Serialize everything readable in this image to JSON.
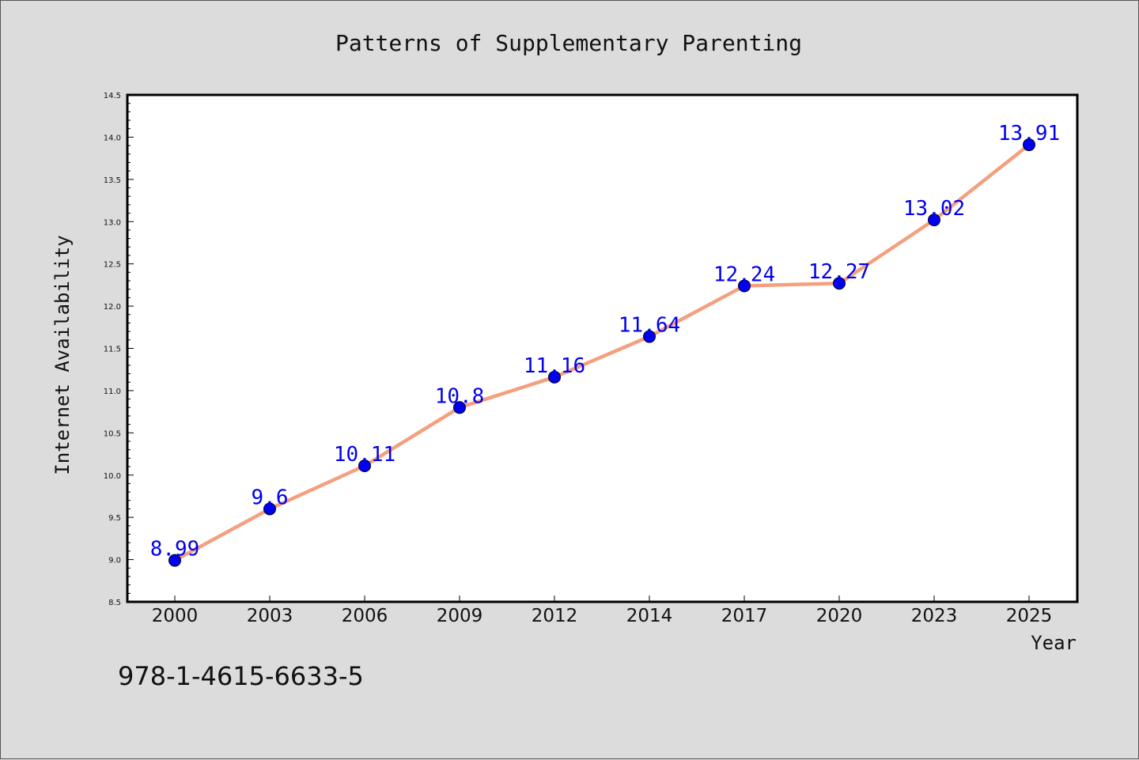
{
  "chart_data": {
    "type": "line",
    "title": "Patterns of Supplementary Parenting",
    "xlabel": "Year",
    "ylabel": "Internet Availability",
    "categories": [
      "2000",
      "2003",
      "2006",
      "2009",
      "2012",
      "2014",
      "2017",
      "2020",
      "2023",
      "2025"
    ],
    "series": [
      {
        "values": [
          8.99,
          9.6,
          10.11,
          10.8,
          11.16,
          11.64,
          12.24,
          12.27,
          13.02,
          13.91
        ],
        "data_labels": [
          "8.99",
          "9.6",
          "10.11",
          "10.8",
          "11.16",
          "11.64",
          "12.24",
          "12.27",
          "13.02",
          "13.91"
        ]
      }
    ],
    "ylim": [
      8.5,
      14.5
    ],
    "yticks": [
      "8.5",
      "9.0",
      "9.5",
      "10.0",
      "10.5",
      "11.0",
      "11.5",
      "12.0",
      "12.5",
      "13.0",
      "13.5",
      "14.0",
      "14.5"
    ],
    "grid": false,
    "legend": "none",
    "colors": {
      "line": "#f4a07f",
      "marker": "#0000ee",
      "data_label": "#0000ee",
      "plot_background": "#ffffff",
      "figure_background": "#dcdcdc"
    }
  },
  "footer": {
    "isbn": "978-1-4615-6633-5"
  }
}
